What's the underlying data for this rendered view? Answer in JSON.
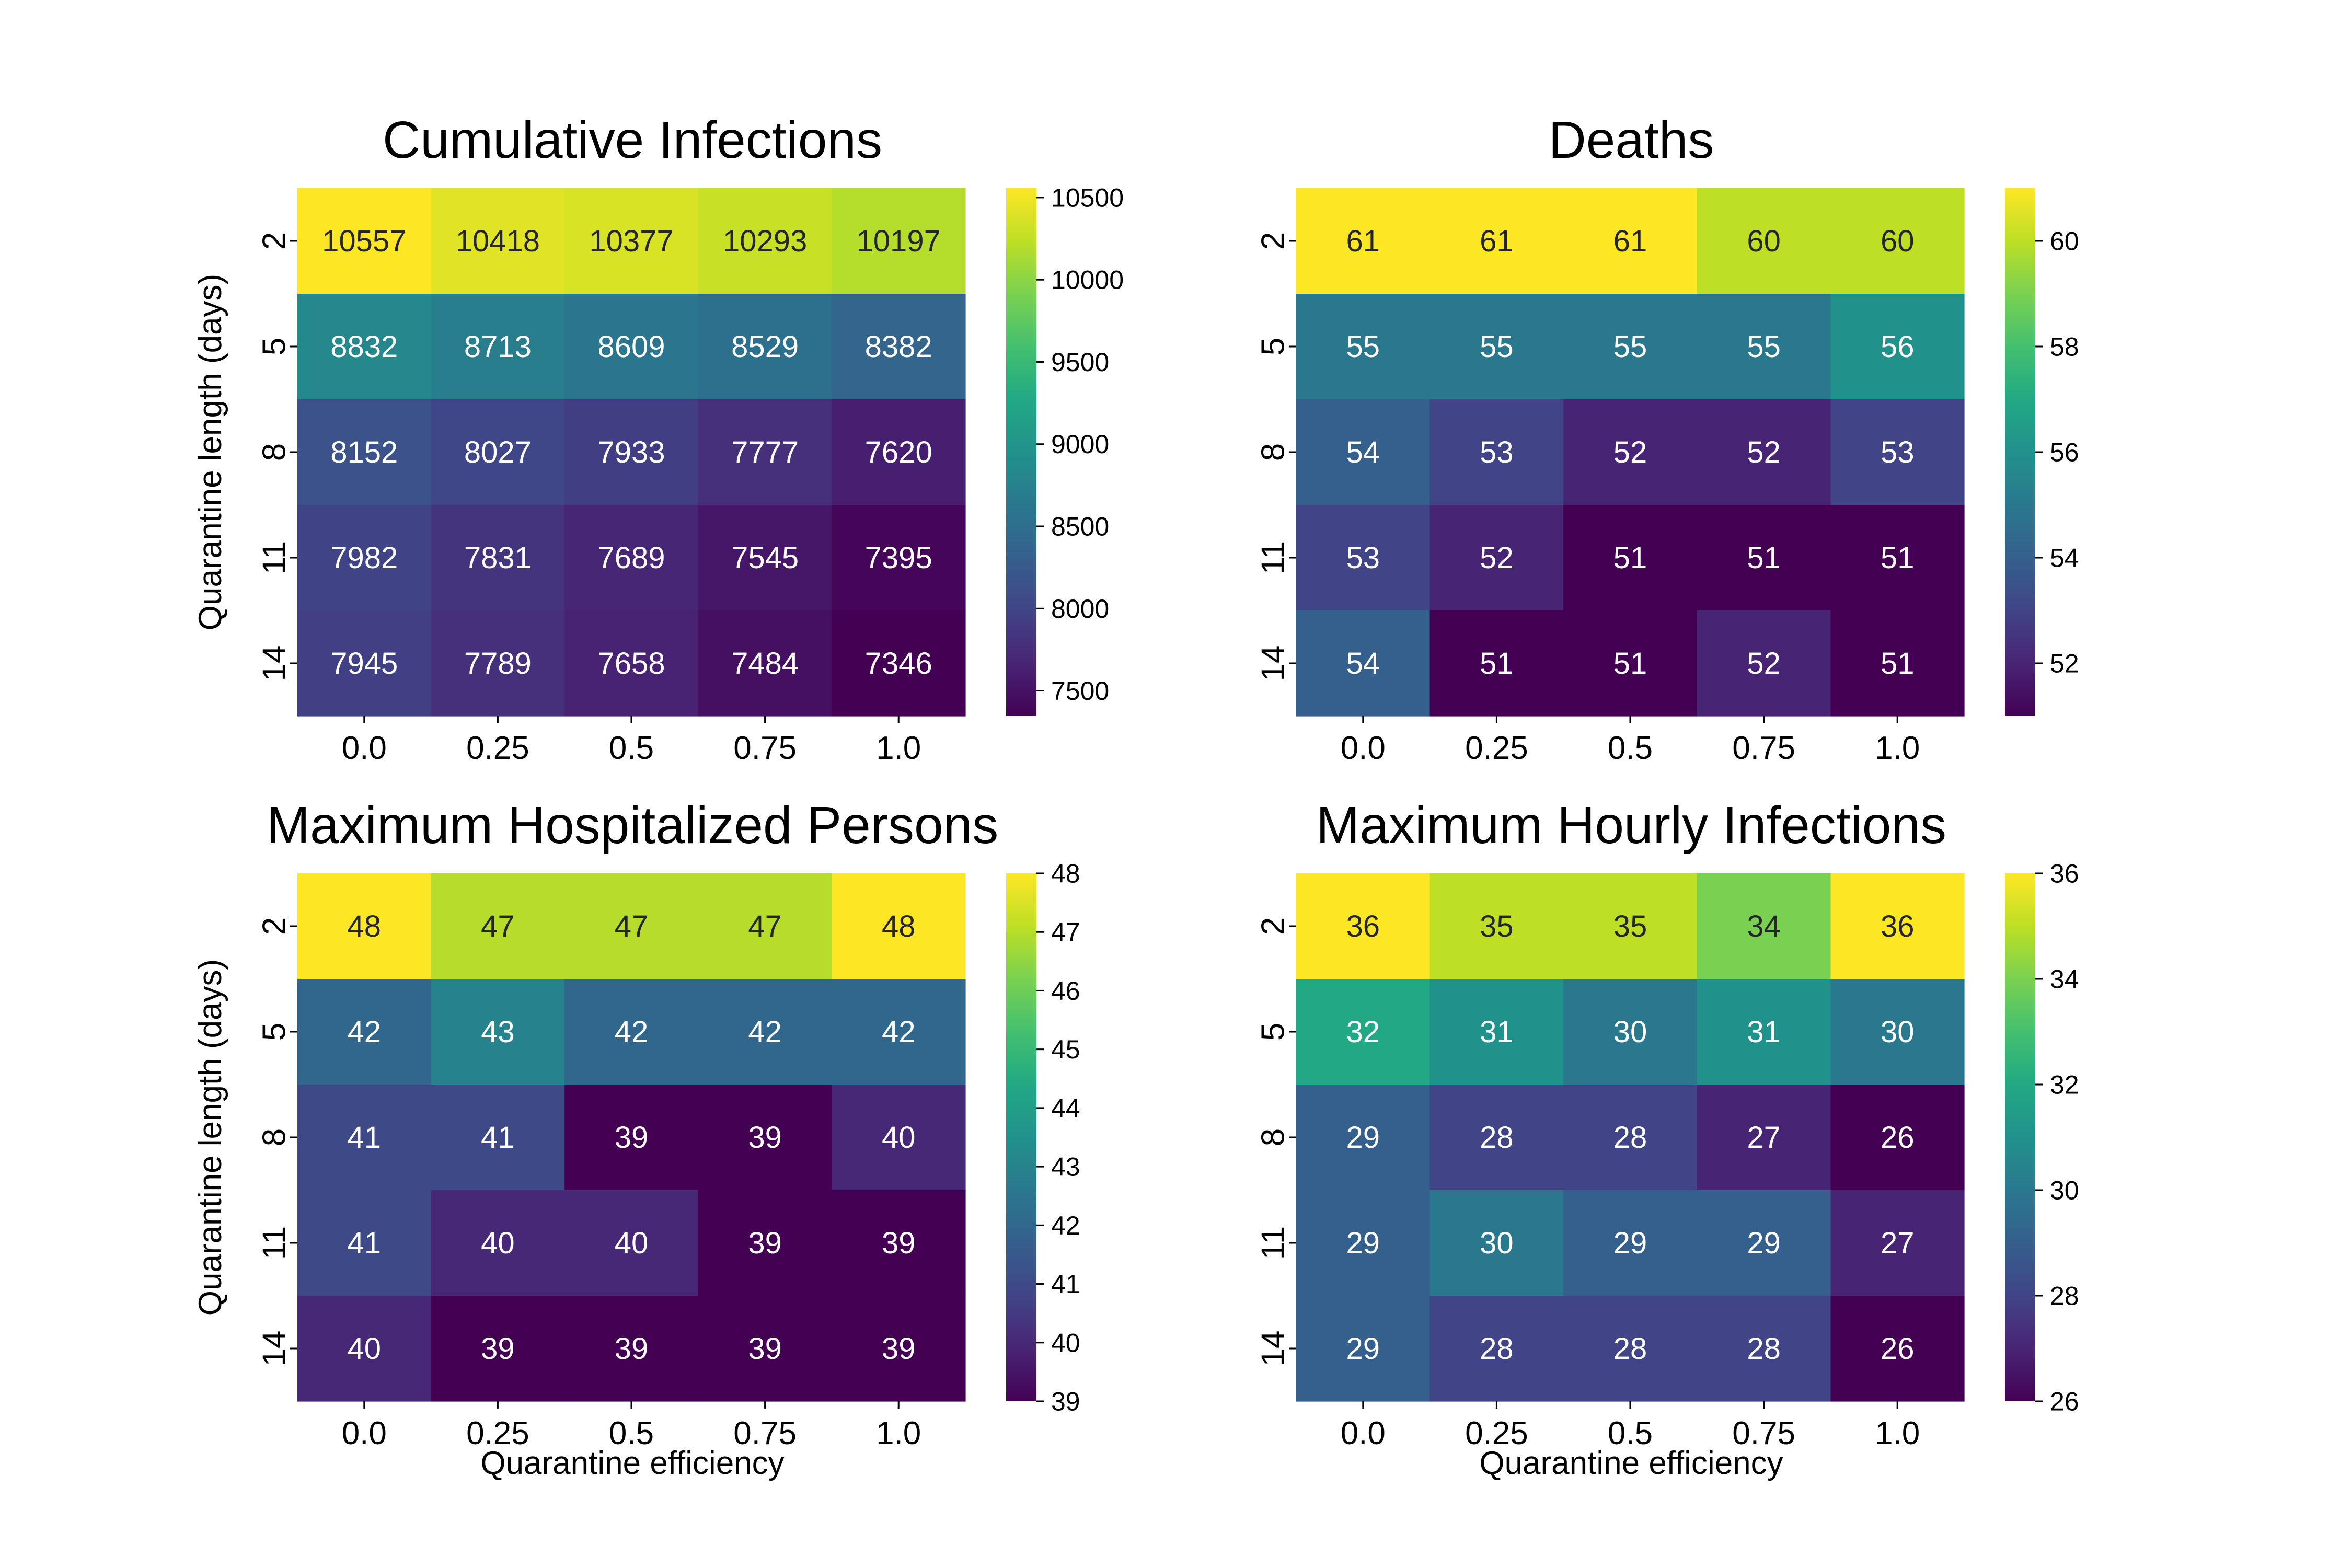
{
  "chart_data": [
    {
      "type": "heatmap",
      "title": "Cumulative Infections",
      "xlabel": "",
      "ylabel": "Quarantine length (days)",
      "x_categories": [
        "0.0",
        "0.25",
        "0.5",
        "0.75",
        "1.0"
      ],
      "y_categories": [
        "2",
        "5",
        "8",
        "11",
        "14"
      ],
      "values": [
        [
          10557,
          10418,
          10377,
          10293,
          10197
        ],
        [
          8832,
          8713,
          8609,
          8529,
          8382
        ],
        [
          8152,
          8027,
          7933,
          7777,
          7620
        ],
        [
          7982,
          7831,
          7689,
          7545,
          7395
        ],
        [
          7945,
          7789,
          7658,
          7484,
          7346
        ]
      ],
      "colormap": "viridis",
      "vmin": 7346,
      "vmax": 10557,
      "colorbar_ticks": [
        7500,
        8000,
        8500,
        9000,
        9500,
        10000,
        10500
      ]
    },
    {
      "type": "heatmap",
      "title": "Deaths",
      "xlabel": "",
      "ylabel": "",
      "x_categories": [
        "0.0",
        "0.25",
        "0.5",
        "0.75",
        "1.0"
      ],
      "y_categories": [
        "2",
        "5",
        "8",
        "11",
        "14"
      ],
      "values": [
        [
          61,
          61,
          61,
          60,
          60
        ],
        [
          55,
          55,
          55,
          55,
          56
        ],
        [
          54,
          53,
          52,
          52,
          53
        ],
        [
          53,
          52,
          51,
          51,
          51
        ],
        [
          54,
          51,
          51,
          52,
          51
        ]
      ],
      "colormap": "viridis",
      "vmin": 51,
      "vmax": 61,
      "colorbar_ticks": [
        52,
        54,
        56,
        58,
        60
      ]
    },
    {
      "type": "heatmap",
      "title": "Maximum Hospitalized Persons",
      "xlabel": "Quarantine efficiency",
      "ylabel": "Quarantine length (days)",
      "x_categories": [
        "0.0",
        "0.25",
        "0.5",
        "0.75",
        "1.0"
      ],
      "y_categories": [
        "2",
        "5",
        "8",
        "11",
        "14"
      ],
      "values": [
        [
          48,
          47,
          47,
          47,
          48
        ],
        [
          42,
          43,
          42,
          42,
          42
        ],
        [
          41,
          41,
          39,
          39,
          40
        ],
        [
          41,
          40,
          40,
          39,
          39
        ],
        [
          40,
          39,
          39,
          39,
          39
        ]
      ],
      "colormap": "viridis",
      "vmin": 39,
      "vmax": 48,
      "colorbar_ticks": [
        39,
        40,
        41,
        42,
        43,
        44,
        45,
        46,
        47,
        48
      ]
    },
    {
      "type": "heatmap",
      "title": "Maximum Hourly Infections",
      "xlabel": "Quarantine efficiency",
      "ylabel": "",
      "x_categories": [
        "0.0",
        "0.25",
        "0.5",
        "0.75",
        "1.0"
      ],
      "y_categories": [
        "2",
        "5",
        "8",
        "11",
        "14"
      ],
      "values": [
        [
          36,
          35,
          35,
          34,
          36
        ],
        [
          32,
          31,
          30,
          31,
          30
        ],
        [
          29,
          28,
          28,
          27,
          26
        ],
        [
          29,
          30,
          29,
          29,
          27
        ],
        [
          29,
          28,
          28,
          28,
          26
        ]
      ],
      "colormap": "viridis",
      "vmin": 26,
      "vmax": 36,
      "colorbar_ticks": [
        26,
        28,
        30,
        32,
        34,
        36
      ]
    }
  ]
}
